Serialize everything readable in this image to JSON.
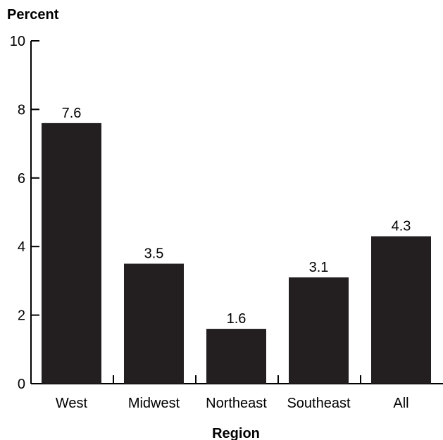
{
  "chart_data": {
    "type": "bar",
    "categories": [
      "West",
      "Midwest",
      "Northeast",
      "Southeast",
      "All"
    ],
    "values": [
      7.6,
      3.5,
      1.6,
      3.1,
      4.3
    ],
    "data_labels": [
      "7.6",
      "3.5",
      "1.6",
      "3.1",
      "4.3"
    ],
    "title": "",
    "xlabel": "Region",
    "ylabel": "Percent",
    "ylim": [
      0,
      10
    ],
    "yticks": [
      0,
      2,
      4,
      6,
      8,
      10
    ],
    "ytick_labels": [
      "0",
      "2",
      "4",
      "6",
      "8",
      "10"
    ],
    "bar_color": "#231f20",
    "grid": false,
    "legend": "none"
  }
}
